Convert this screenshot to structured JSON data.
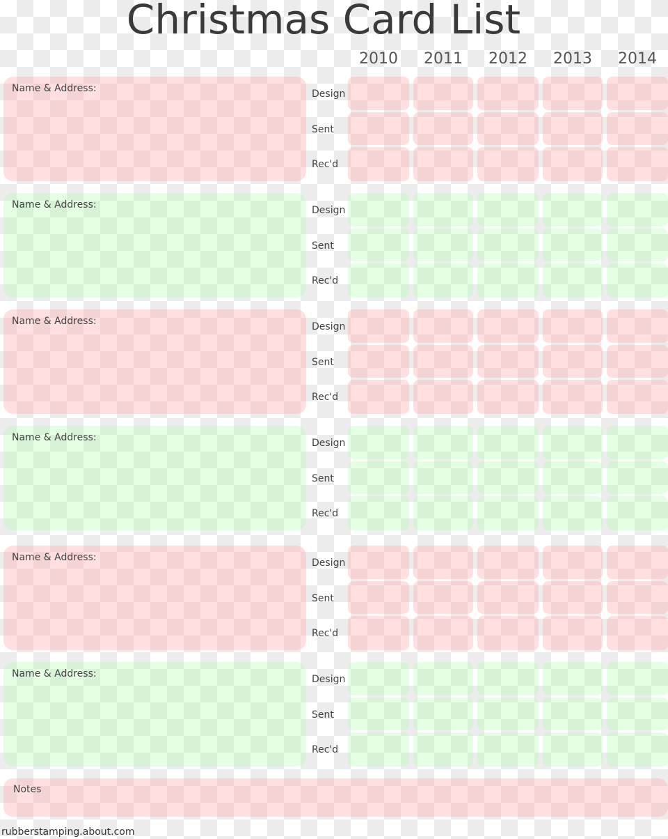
{
  "header": {
    "title": "Christmas Card List"
  },
  "years": [
    "2010",
    "2011",
    "2012",
    "2013",
    "2014"
  ],
  "entries": [
    {
      "name_label": "Name & Address:",
      "rows": [
        "Design",
        "Sent",
        "Rec'd"
      ]
    },
    {
      "name_label": "Name & Address:",
      "rows": [
        "Design",
        "Sent",
        "Rec'd"
      ]
    },
    {
      "name_label": "Name & Address:",
      "rows": [
        "Design",
        "Sent",
        "Rec'd"
      ]
    },
    {
      "name_label": "Name & Address:",
      "rows": [
        "Design",
        "Sent",
        "Rec'd"
      ]
    },
    {
      "name_label": "Name & Address:",
      "rows": [
        "Design",
        "Sent",
        "Rec'd"
      ]
    },
    {
      "name_label": "Name & Address:",
      "rows": [
        "Design",
        "Sent",
        "Rec'd"
      ]
    }
  ],
  "notes_label": "Notes",
  "footer": "rubberstamping.about.com"
}
